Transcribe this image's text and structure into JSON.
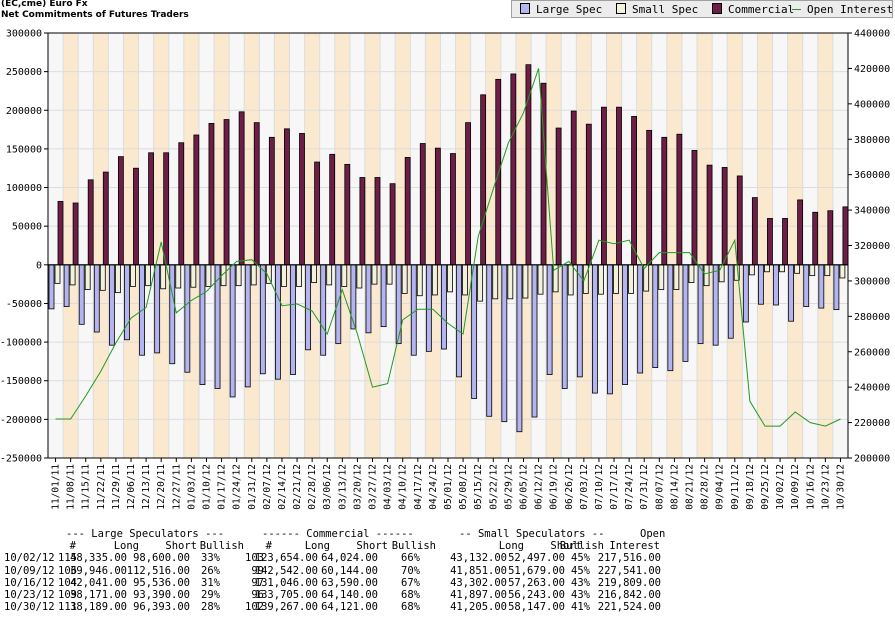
{
  "header": {
    "line1": "(EC,cme) Euro Fx",
    "line2": "Net Commitments of Futures Traders"
  },
  "legend": [
    {
      "label": "Large Spec",
      "color": "#b4b4f0"
    },
    {
      "label": "Small Spec",
      "color": "#f2f2dc"
    },
    {
      "label": "Commercial",
      "color": "#6e1e46"
    },
    {
      "label": "Open Interest",
      "color": "#229922"
    }
  ],
  "chart_data": {
    "type": "bar",
    "left_axis": {
      "min": -250000,
      "max": 300000,
      "step": 50000,
      "ticks": [
        "300000",
        "250000",
        "200000",
        "150000",
        "100000",
        "50000",
        "0",
        "-50000",
        "-100000",
        "-150000",
        "-200000",
        "-250000"
      ]
    },
    "right_axis": {
      "min": 200000,
      "max": 440000,
      "step": 20000,
      "ticks": [
        "440000",
        "420000",
        "400000",
        "380000",
        "360000",
        "340000",
        "320000",
        "300000",
        "280000",
        "260000",
        "240000",
        "220000",
        "200000"
      ]
    },
    "categories": [
      "11/01/11",
      "11/08/11",
      "11/15/11",
      "11/22/11",
      "11/29/11",
      "12/06/11",
      "12/13/11",
      "12/20/11",
      "12/27/11",
      "01/03/12",
      "01/10/12",
      "01/17/12",
      "01/24/12",
      "01/31/12",
      "02/07/12",
      "02/14/12",
      "02/21/12",
      "02/28/12",
      "03/06/12",
      "03/13/12",
      "03/20/12",
      "03/27/12",
      "04/03/12",
      "04/10/12",
      "04/17/12",
      "04/24/12",
      "05/01/12",
      "05/08/12",
      "05/15/12",
      "05/22/12",
      "05/29/12",
      "06/05/12",
      "06/12/12",
      "06/19/12",
      "06/26/12",
      "07/03/12",
      "07/10/12",
      "07/17/12",
      "07/24/12",
      "07/31/12",
      "08/07/12",
      "08/14/12",
      "08/21/12",
      "08/28/12",
      "09/04/12",
      "09/11/12",
      "09/18/12",
      "09/25/12",
      "10/02/12",
      "10/09/12",
      "10/16/12",
      "10/23/12",
      "10/30/12"
    ],
    "series": [
      {
        "name": "Commercial",
        "values": [
          82000,
          80000,
          110000,
          120000,
          140000,
          125000,
          145000,
          145000,
          158000,
          168000,
          183000,
          188000,
          198000,
          184000,
          165000,
          176000,
          170000,
          133000,
          143000,
          130000,
          113000,
          113000,
          105000,
          139000,
          157000,
          151000,
          144000,
          184000,
          220000,
          240000,
          247000,
          259000,
          235000,
          177000,
          199000,
          182000,
          204000,
          204000,
          192000,
          174000,
          165000,
          169000,
          148000,
          129000,
          126000,
          115000,
          87000,
          60000,
          60000,
          84000,
          68000,
          70000,
          75000
        ]
      },
      {
        "name": "Large Spec",
        "values": [
          -57000,
          -54000,
          -77000,
          -87000,
          -104000,
          -97000,
          -117000,
          -114000,
          -128000,
          -139000,
          -155000,
          -160000,
          -171000,
          -158000,
          -141000,
          -148000,
          -142000,
          -110000,
          -117000,
          -102000,
          -83000,
          -88000,
          -80000,
          -102000,
          -117000,
          -112000,
          -109000,
          -145000,
          -173000,
          -196000,
          -203000,
          -216000,
          -197000,
          -142000,
          -160000,
          -145000,
          -166000,
          -167000,
          -155000,
          -140000,
          -133000,
          -137000,
          -125000,
          -102000,
          -104000,
          -95000,
          -74000,
          -51000,
          -52000,
          -73000,
          -54000,
          -56000,
          -58000
        ]
      },
      {
        "name": "Small Spec",
        "values": [
          -24000,
          -26000,
          -32000,
          -33000,
          -36000,
          -28000,
          -27000,
          -31000,
          -30000,
          -29000,
          -28000,
          -27000,
          -27000,
          -26000,
          -24000,
          -28000,
          -28000,
          -23000,
          -26000,
          -28000,
          -30000,
          -25000,
          -25000,
          -37000,
          -40000,
          -39000,
          -35000,
          -39000,
          -47000,
          -44000,
          -44000,
          -43000,
          -38000,
          -35000,
          -39000,
          -37000,
          -38000,
          -37000,
          -37000,
          -34000,
          -32000,
          -32000,
          -23000,
          -27000,
          -22000,
          -20000,
          -13000,
          -9000,
          -9000,
          -11000,
          -14000,
          -14000,
          -17000
        ]
      },
      {
        "name": "Open Interest",
        "values": [
          222000,
          222000,
          235000,
          249000,
          265000,
          279000,
          285000,
          322000,
          282000,
          289000,
          294000,
          303000,
          311000,
          312000,
          304000,
          286000,
          287000,
          283000,
          270000,
          295000,
          270000,
          240000,
          242000,
          278000,
          284000,
          284000,
          276000,
          270000,
          325000,
          352000,
          378000,
          395000,
          420000,
          306000,
          311000,
          300000,
          323000,
          321000,
          323000,
          307000,
          316000,
          316000,
          316000,
          304000,
          306000,
          323000,
          232000,
          218000,
          218000,
          226000,
          220000,
          218000,
          222000
        ]
      }
    ]
  },
  "table": {
    "group_headers": [
      {
        "text": "--- Large Speculators ---",
        "x": 66
      },
      {
        "text": "------ Commercial ------",
        "x": 262
      },
      {
        "text": "-- Small Speculators --",
        "x": 459
      },
      {
        "text": "Open",
        "x": 640
      }
    ],
    "col_headers": [
      "#",
      "Long",
      "Short",
      "Bullish",
      "#",
      "Long",
      "Short",
      "Bullish",
      "Long",
      "Short",
      "Bullish",
      "Interest"
    ],
    "rows": [
      [
        "10/02/12",
        "115",
        "48,335.00",
        "98,600.00",
        "33%",
        "103",
        "123,654.00",
        "64,024.00",
        "66%",
        "43,132.00",
        "52,497.00",
        "45%",
        "217,516.00"
      ],
      [
        "10/09/12",
        "106",
        "39,946.00",
        "112,516.00",
        "26%",
        "99",
        "142,542.00",
        "60,144.00",
        "70%",
        "41,851.00",
        "51,679.00",
        "45%",
        "227,541.00"
      ],
      [
        "10/16/12",
        "104",
        "42,041.00",
        "95,536.00",
        "31%",
        "97",
        "131,046.00",
        "63,590.00",
        "67%",
        "43,302.00",
        "57,263.00",
        "43%",
        "219,809.00"
      ],
      [
        "10/23/12",
        "109",
        "38,171.00",
        "93,390.00",
        "29%",
        "96",
        "133,705.00",
        "64,140.00",
        "68%",
        "41,897.00",
        "56,243.00",
        "43%",
        "216,842.00"
      ],
      [
        "10/30/12",
        "111",
        "38,189.00",
        "96,393.00",
        "28%",
        "102",
        "139,267.00",
        "64,121.00",
        "68%",
        "41,205.00",
        "58,147.00",
        "41%",
        "221,524.00"
      ]
    ]
  }
}
